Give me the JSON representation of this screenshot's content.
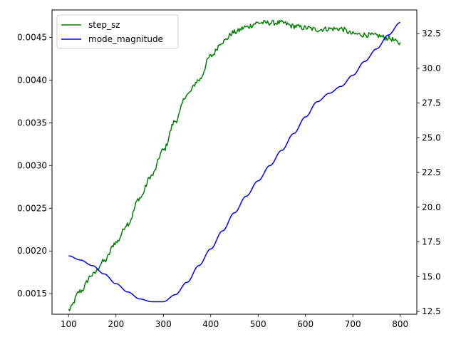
{
  "chart_data": {
    "type": "line",
    "title": "",
    "xlabel": "",
    "ylabel": "",
    "y2label": "",
    "xlim": [
      65,
      835
    ],
    "ylim": [
      0.00126,
      0.00482
    ],
    "y2lim": [
      12.3,
      34.2
    ],
    "grid": false,
    "legend_position": "top-left",
    "x_ticks": [
      100,
      200,
      300,
      400,
      500,
      600,
      700,
      800
    ],
    "y_ticks": [
      0.0015,
      0.002,
      0.0025,
      0.003,
      0.0035,
      0.004,
      0.0045
    ],
    "y_tick_labels": [
      "0.0015",
      "0.0020",
      "0.0025",
      "0.0030",
      "0.0035",
      "0.0040",
      "0.0045"
    ],
    "y2_ticks": [
      12.5,
      15.0,
      17.5,
      20.0,
      22.5,
      25.0,
      27.5,
      30.0,
      32.5
    ],
    "y2_tick_labels": [
      "12.5",
      "15.0",
      "17.5",
      "20.0",
      "22.5",
      "25.0",
      "27.5",
      "30.0",
      "32.5"
    ],
    "series": [
      {
        "name": "step_sz",
        "axis": "left",
        "color": "#008000",
        "x": [
          100,
          125,
          150,
          175,
          200,
          225,
          250,
          275,
          300,
          325,
          350,
          375,
          400,
          425,
          450,
          475,
          500,
          525,
          550,
          575,
          600,
          625,
          650,
          675,
          700,
          725,
          750,
          775,
          800
        ],
        "values": [
          0.00131,
          0.00153,
          0.00172,
          0.00188,
          0.0021,
          0.00232,
          0.00262,
          0.00288,
          0.00318,
          0.00352,
          0.00383,
          0.004,
          0.00428,
          0.00445,
          0.00456,
          0.00462,
          0.00467,
          0.00467,
          0.00467,
          0.00463,
          0.00461,
          0.00459,
          0.0046,
          0.0046,
          0.00454,
          0.00453,
          0.00452,
          0.00449,
          0.00443
        ],
        "noise": 3e-05
      },
      {
        "name": "mode_magnitude",
        "axis": "right",
        "color": "#0000ff",
        "x": [
          100,
          125,
          150,
          175,
          200,
          225,
          250,
          275,
          300,
          325,
          350,
          375,
          400,
          425,
          450,
          475,
          500,
          525,
          550,
          575,
          600,
          625,
          650,
          675,
          700,
          725,
          750,
          775,
          800
        ],
        "values": [
          16.5,
          16.2,
          15.8,
          15.2,
          14.5,
          13.9,
          13.4,
          13.2,
          13.2,
          13.7,
          14.6,
          15.8,
          17.0,
          18.3,
          19.6,
          20.8,
          21.9,
          23.0,
          24.1,
          25.3,
          26.5,
          27.6,
          28.2,
          28.7,
          29.5,
          30.5,
          31.4,
          32.4,
          33.3
        ]
      }
    ]
  }
}
